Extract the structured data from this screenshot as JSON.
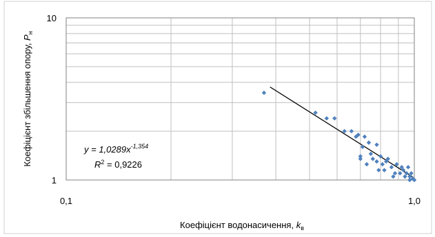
{
  "chart_data": {
    "type": "scatter",
    "xlabel": {
      "main": "Коефіцієнт водонасичення, ",
      "var": "k",
      "sub": "в"
    },
    "ylabel": {
      "main": "Коефіцієнт збільшення опору, ",
      "var": "P",
      "sub": "н"
    },
    "x_scale": "log",
    "y_scale": "log",
    "xlim": [
      0.1,
      1.0
    ],
    "ylim": [
      1,
      10
    ],
    "x_tick_labels": [
      "0,1",
      "1,0"
    ],
    "y_tick_labels": [
      "1",
      "10"
    ],
    "grid": true,
    "legend": "none",
    "colors": {
      "points": "#4f81bd",
      "trendline": "#000000",
      "grid": "#bfbfbf"
    },
    "equation": {
      "prefix": "y = 1,0289x",
      "exponent": "-1,354"
    },
    "r_squared": {
      "prefix": "R",
      "sup": "2",
      "value": " = 0,9226"
    },
    "trendline": {
      "type": "power",
      "a": 1.0289,
      "b": -1.354,
      "x_range": [
        0.385,
        0.99
      ]
    },
    "series": [
      {
        "x": [
          0.37,
          0.52,
          0.56,
          0.59,
          0.63,
          0.66,
          0.68,
          0.69,
          0.7,
          0.7,
          0.71,
          0.72,
          0.73,
          0.74,
          0.75,
          0.76,
          0.78,
          0.78,
          0.79,
          0.8,
          0.81,
          0.82,
          0.83,
          0.84,
          0.86,
          0.87,
          0.88,
          0.89,
          0.91,
          0.92,
          0.93,
          0.94,
          0.95,
          0.96,
          0.97,
          0.97,
          0.98,
          0.99,
          1.0
        ],
        "y": [
          3.45,
          2.6,
          2.4,
          2.4,
          2.0,
          2.0,
          1.85,
          1.9,
          1.4,
          1.35,
          1.6,
          1.85,
          1.25,
          1.7,
          1.45,
          1.35,
          1.3,
          1.65,
          1.15,
          1.4,
          1.25,
          1.15,
          1.3,
          1.35,
          1.2,
          1.05,
          1.1,
          1.25,
          1.1,
          1.2,
          1.15,
          1.05,
          1.1,
          1.2,
          1.05,
          1.0,
          1.1,
          1.02,
          1.0
        ]
      }
    ]
  }
}
